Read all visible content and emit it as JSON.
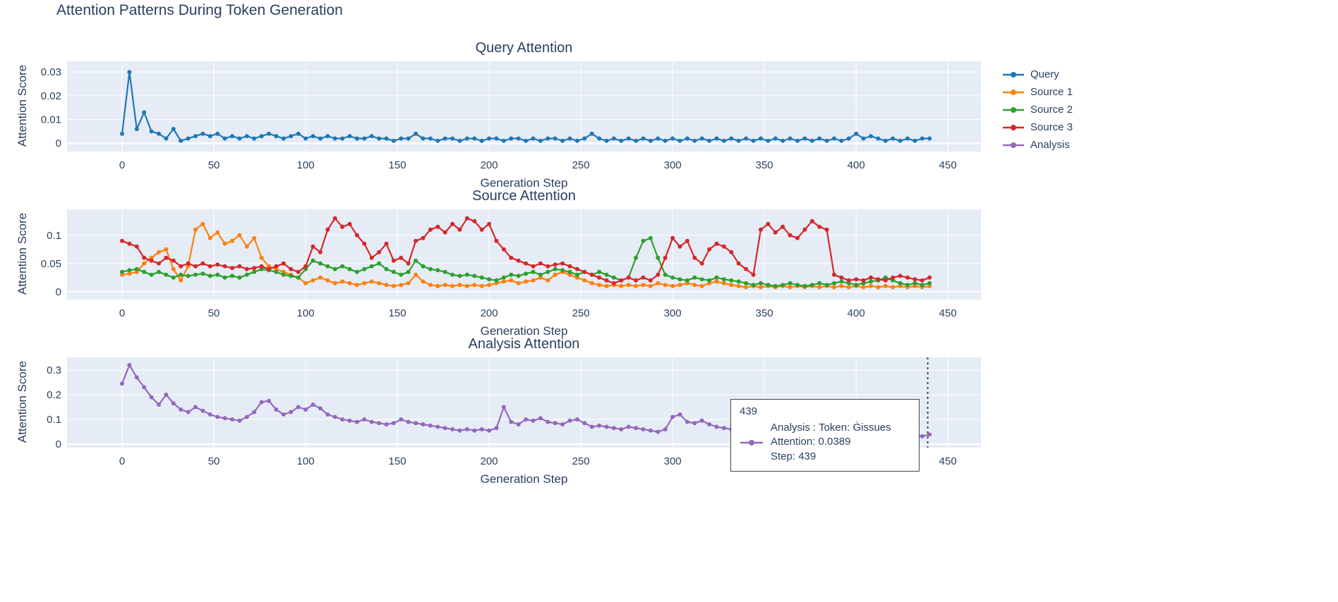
{
  "title": "Attention Patterns During Token Generation",
  "colors": {
    "query": "#1f77b4",
    "source1": "#ff7f0e",
    "source2": "#2ca02c",
    "source3": "#d62728",
    "analysis": "#9467bd",
    "plot_bg": "#e5ecf6",
    "grid": "#ffffff",
    "text": "#2a3f5f"
  },
  "legend": {
    "items": [
      {
        "label": "Query",
        "color": "#1f77b4"
      },
      {
        "label": "Source 1",
        "color": "#ff7f0e"
      },
      {
        "label": "Source 2",
        "color": "#2ca02c"
      },
      {
        "label": "Source 3",
        "color": "#d62728"
      },
      {
        "label": "Analysis",
        "color": "#9467bd"
      }
    ]
  },
  "tooltip": {
    "header": "439",
    "line1": "Analysis : Token: Ġissues",
    "line2": "Attention: 0.0389",
    "line3": "Step: 439"
  },
  "chart_data": [
    {
      "type": "line",
      "title": "Query Attention",
      "xlabel": "Generation Step",
      "ylabel": "Attention Score",
      "xlim": [
        -30,
        468
      ],
      "ylim": [
        -0.0035,
        0.0345
      ],
      "xticks": [
        0,
        50,
        100,
        150,
        200,
        250,
        300,
        350,
        400,
        450
      ],
      "yticks": [
        0,
        0.01,
        0.02,
        0.03
      ],
      "x_start": 0,
      "x_step": 4,
      "series": [
        {
          "name": "Query",
          "color": "#1f77b4",
          "values": [
            0.004,
            0.03,
            0.006,
            0.013,
            0.005,
            0.004,
            0.002,
            0.006,
            0.001,
            0.002,
            0.003,
            0.004,
            0.003,
            0.004,
            0.002,
            0.003,
            0.002,
            0.003,
            0.002,
            0.003,
            0.004,
            0.003,
            0.002,
            0.003,
            0.004,
            0.002,
            0.003,
            0.002,
            0.003,
            0.002,
            0.002,
            0.003,
            0.002,
            0.002,
            0.003,
            0.002,
            0.002,
            0.001,
            0.002,
            0.002,
            0.004,
            0.002,
            0.002,
            0.001,
            0.002,
            0.002,
            0.001,
            0.002,
            0.002,
            0.001,
            0.002,
            0.002,
            0.001,
            0.002,
            0.002,
            0.001,
            0.002,
            0.001,
            0.002,
            0.002,
            0.001,
            0.002,
            0.001,
            0.002,
            0.004,
            0.002,
            0.001,
            0.002,
            0.001,
            0.002,
            0.001,
            0.002,
            0.001,
            0.002,
            0.001,
            0.002,
            0.001,
            0.002,
            0.001,
            0.002,
            0.001,
            0.002,
            0.001,
            0.002,
            0.001,
            0.002,
            0.001,
            0.002,
            0.001,
            0.002,
            0.001,
            0.002,
            0.001,
            0.002,
            0.001,
            0.002,
            0.001,
            0.002,
            0.001,
            0.002,
            0.004,
            0.002,
            0.003,
            0.002,
            0.001,
            0.002,
            0.001,
            0.002,
            0.001,
            0.002,
            0.002
          ]
        }
      ]
    },
    {
      "type": "line",
      "title": "Source Attention",
      "xlabel": "Generation Step",
      "ylabel": "Attention Score",
      "xlim": [
        -30,
        468
      ],
      "ylim": [
        -0.014,
        0.146
      ],
      "xticks": [
        0,
        50,
        100,
        150,
        200,
        250,
        300,
        350,
        400,
        450
      ],
      "yticks": [
        0,
        0.05,
        0.1
      ],
      "x_start": 0,
      "x_step": 4,
      "series": [
        {
          "name": "Source 1",
          "color": "#ff7f0e",
          "values": [
            0.03,
            0.032,
            0.035,
            0.05,
            0.06,
            0.07,
            0.075,
            0.04,
            0.02,
            0.045,
            0.11,
            0.12,
            0.095,
            0.105,
            0.085,
            0.09,
            0.1,
            0.08,
            0.095,
            0.06,
            0.045,
            0.04,
            0.035,
            0.03,
            0.025,
            0.015,
            0.02,
            0.025,
            0.02,
            0.015,
            0.018,
            0.015,
            0.012,
            0.015,
            0.018,
            0.015,
            0.012,
            0.01,
            0.012,
            0.015,
            0.03,
            0.018,
            0.012,
            0.01,
            0.012,
            0.01,
            0.012,
            0.01,
            0.012,
            0.01,
            0.012,
            0.015,
            0.018,
            0.02,
            0.015,
            0.018,
            0.02,
            0.025,
            0.02,
            0.03,
            0.035,
            0.03,
            0.025,
            0.02,
            0.015,
            0.012,
            0.01,
            0.012,
            0.01,
            0.012,
            0.01,
            0.012,
            0.01,
            0.015,
            0.012,
            0.01,
            0.012,
            0.015,
            0.012,
            0.01,
            0.015,
            0.018,
            0.015,
            0.012,
            0.01,
            0.008,
            0.01,
            0.008,
            0.01,
            0.008,
            0.01,
            0.008,
            0.01,
            0.008,
            0.01,
            0.008,
            0.01,
            0.008,
            0.01,
            0.008,
            0.01,
            0.008,
            0.01,
            0.008,
            0.01,
            0.008,
            0.01,
            0.008,
            0.01,
            0.008,
            0.01
          ]
        },
        {
          "name": "Source 2",
          "color": "#2ca02c",
          "values": [
            0.035,
            0.038,
            0.04,
            0.035,
            0.03,
            0.035,
            0.03,
            0.025,
            0.03,
            0.028,
            0.03,
            0.032,
            0.028,
            0.03,
            0.025,
            0.028,
            0.025,
            0.03,
            0.035,
            0.04,
            0.038,
            0.035,
            0.03,
            0.028,
            0.025,
            0.04,
            0.055,
            0.05,
            0.045,
            0.04,
            0.045,
            0.04,
            0.035,
            0.04,
            0.045,
            0.05,
            0.04,
            0.035,
            0.03,
            0.035,
            0.055,
            0.045,
            0.04,
            0.038,
            0.035,
            0.03,
            0.028,
            0.03,
            0.028,
            0.025,
            0.022,
            0.02,
            0.025,
            0.03,
            0.028,
            0.032,
            0.035,
            0.03,
            0.035,
            0.04,
            0.038,
            0.035,
            0.03,
            0.035,
            0.03,
            0.035,
            0.03,
            0.025,
            0.02,
            0.025,
            0.06,
            0.09,
            0.095,
            0.06,
            0.03,
            0.025,
            0.022,
            0.02,
            0.025,
            0.022,
            0.02,
            0.025,
            0.022,
            0.02,
            0.018,
            0.015,
            0.012,
            0.015,
            0.012,
            0.01,
            0.012,
            0.015,
            0.012,
            0.01,
            0.012,
            0.015,
            0.012,
            0.015,
            0.018,
            0.015,
            0.012,
            0.015,
            0.018,
            0.02,
            0.025,
            0.02,
            0.015,
            0.012,
            0.015,
            0.012,
            0.015
          ]
        },
        {
          "name": "Source 3",
          "color": "#d62728",
          "values": [
            0.09,
            0.085,
            0.08,
            0.06,
            0.055,
            0.05,
            0.06,
            0.055,
            0.045,
            0.05,
            0.045,
            0.05,
            0.045,
            0.048,
            0.045,
            0.042,
            0.045,
            0.04,
            0.042,
            0.045,
            0.04,
            0.045,
            0.05,
            0.04,
            0.035,
            0.045,
            0.08,
            0.07,
            0.11,
            0.13,
            0.115,
            0.12,
            0.1,
            0.085,
            0.06,
            0.07,
            0.085,
            0.055,
            0.06,
            0.05,
            0.09,
            0.095,
            0.11,
            0.115,
            0.105,
            0.12,
            0.11,
            0.13,
            0.125,
            0.11,
            0.12,
            0.09,
            0.075,
            0.06,
            0.055,
            0.05,
            0.045,
            0.05,
            0.045,
            0.048,
            0.05,
            0.045,
            0.04,
            0.035,
            0.03,
            0.025,
            0.02,
            0.015,
            0.02,
            0.025,
            0.02,
            0.025,
            0.02,
            0.03,
            0.06,
            0.095,
            0.08,
            0.09,
            0.06,
            0.05,
            0.075,
            0.085,
            0.08,
            0.07,
            0.05,
            0.04,
            0.03,
            0.11,
            0.12,
            0.105,
            0.115,
            0.1,
            0.095,
            0.11,
            0.125,
            0.115,
            0.11,
            0.03,
            0.025,
            0.02,
            0.022,
            0.02,
            0.025,
            0.022,
            0.02,
            0.025,
            0.028,
            0.025,
            0.022,
            0.02,
            0.025
          ]
        }
      ]
    },
    {
      "type": "line",
      "title": "Analysis Attention",
      "xlabel": "Generation Step",
      "ylabel": "Attention Score",
      "xlim": [
        -30,
        468
      ],
      "ylim": [
        -0.014,
        0.351
      ],
      "xticks": [
        0,
        50,
        100,
        150,
        200,
        250,
        300,
        350,
        400,
        450
      ],
      "yticks": [
        0,
        0.1,
        0.2,
        0.3
      ],
      "x_start": 0,
      "x_step": 4,
      "annotation": {
        "type": "vline",
        "x": 439,
        "dash": "dot",
        "color": "#444444"
      },
      "series": [
        {
          "name": "Analysis",
          "color": "#9467bd",
          "values": [
            0.245,
            0.32,
            0.27,
            0.23,
            0.19,
            0.16,
            0.2,
            0.165,
            0.14,
            0.13,
            0.15,
            0.135,
            0.12,
            0.11,
            0.105,
            0.1,
            0.095,
            0.11,
            0.13,
            0.17,
            0.175,
            0.14,
            0.12,
            0.13,
            0.15,
            0.14,
            0.16,
            0.145,
            0.12,
            0.11,
            0.1,
            0.095,
            0.09,
            0.1,
            0.09,
            0.085,
            0.08,
            0.085,
            0.1,
            0.09,
            0.085,
            0.08,
            0.075,
            0.07,
            0.065,
            0.06,
            0.055,
            0.06,
            0.055,
            0.06,
            0.055,
            0.065,
            0.15,
            0.09,
            0.08,
            0.1,
            0.095,
            0.105,
            0.09,
            0.085,
            0.08,
            0.095,
            0.1,
            0.085,
            0.07,
            0.075,
            0.07,
            0.065,
            0.06,
            0.07,
            0.065,
            0.06,
            0.055,
            0.05,
            0.06,
            0.11,
            0.12,
            0.09,
            0.085,
            0.095,
            0.08,
            0.07,
            0.065,
            0.06,
            0.055,
            0.05,
            0.045,
            0.05,
            0.045,
            0.04,
            0.045,
            0.04,
            0.045,
            0.04,
            0.035,
            0.04,
            0.035,
            0.04,
            0.035,
            0.04,
            0.035,
            0.03,
            0.035,
            0.03,
            0.035,
            0.03,
            0.035,
            0.03,
            0.035,
            0.032,
            0.0389
          ]
        }
      ]
    }
  ]
}
